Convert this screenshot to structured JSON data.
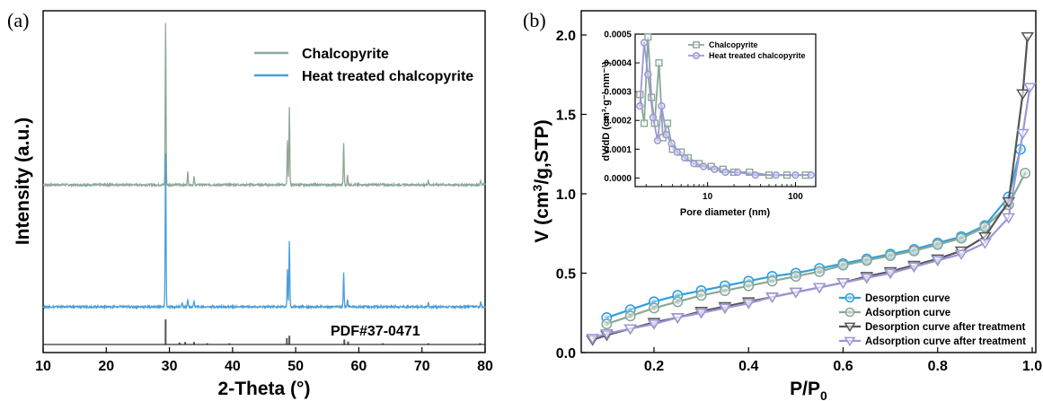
{
  "chart_data": [
    {
      "panel": "(a)",
      "type": "line",
      "xlabel": "2-Theta (°)",
      "ylabel": "Intensity (a.u.)",
      "xlim": [
        10,
        80
      ],
      "xticks": [
        10,
        20,
        30,
        40,
        50,
        60,
        70,
        80
      ],
      "yticks": [],
      "reference_label": "PDF#37-0471",
      "series": [
        {
          "name": "Chalcopyrite",
          "color": "#8fa898",
          "offset": 1.0,
          "peaks": [
            {
              "x": 29.4,
              "y": 1.0
            },
            {
              "x": 32.9,
              "y": 0.08
            },
            {
              "x": 33.9,
              "y": 0.05
            },
            {
              "x": 48.7,
              "y": 0.28
            },
            {
              "x": 49.0,
              "y": 0.48
            },
            {
              "x": 57.6,
              "y": 0.26
            },
            {
              "x": 58.2,
              "y": 0.06
            },
            {
              "x": 71.0,
              "y": 0.03
            },
            {
              "x": 79.3,
              "y": 0.03
            }
          ]
        },
        {
          "name": "Heat treated chalcopyrite",
          "color": "#4a9fd8",
          "offset": 0.0,
          "peaks": [
            {
              "x": 29.4,
              "y": 1.0
            },
            {
              "x": 32.0,
              "y": 0.03
            },
            {
              "x": 32.9,
              "y": 0.05
            },
            {
              "x": 33.9,
              "y": 0.04
            },
            {
              "x": 48.7,
              "y": 0.24
            },
            {
              "x": 49.0,
              "y": 0.43
            },
            {
              "x": 57.6,
              "y": 0.22
            },
            {
              "x": 58.2,
              "y": 0.05
            },
            {
              "x": 71.0,
              "y": 0.03
            },
            {
              "x": 79.3,
              "y": 0.03
            }
          ]
        }
      ],
      "reference_sticks": [
        {
          "x": 29.4,
          "y": 1.0
        },
        {
          "x": 31.6,
          "y": 0.08
        },
        {
          "x": 32.5,
          "y": 0.1
        },
        {
          "x": 33.9,
          "y": 0.1
        },
        {
          "x": 36.0,
          "y": 0.05
        },
        {
          "x": 39.5,
          "y": 0.05
        },
        {
          "x": 48.6,
          "y": 0.25
        },
        {
          "x": 49.0,
          "y": 0.35
        },
        {
          "x": 57.7,
          "y": 0.2
        },
        {
          "x": 58.3,
          "y": 0.12
        },
        {
          "x": 63.8,
          "y": 0.05
        },
        {
          "x": 71.0,
          "y": 0.05
        },
        {
          "x": 79.2,
          "y": 0.05
        }
      ]
    },
    {
      "panel": "(b)",
      "type": "line",
      "xlabel": "P/P0",
      "ylabel": "V (cm³/g,STP)",
      "xlim": [
        0.05,
        1.0
      ],
      "ylim": [
        0.0,
        2.0
      ],
      "xticks": [
        0.2,
        0.4,
        0.6,
        0.8,
        1.0
      ],
      "yticks": [
        0.0,
        0.5,
        1.0,
        1.5,
        2.0
      ],
      "series": [
        {
          "name": "Desorption curve",
          "color": "#2f9fe0",
          "marker": "circle",
          "x": [
            0.1,
            0.15,
            0.2,
            0.25,
            0.3,
            0.35,
            0.4,
            0.45,
            0.5,
            0.55,
            0.6,
            0.65,
            0.7,
            0.75,
            0.8,
            0.85,
            0.9,
            0.95,
            0.975
          ],
          "y": [
            0.22,
            0.27,
            0.32,
            0.36,
            0.39,
            0.42,
            0.45,
            0.48,
            0.5,
            0.53,
            0.56,
            0.59,
            0.62,
            0.65,
            0.69,
            0.73,
            0.8,
            0.98,
            1.28
          ]
        },
        {
          "name": "Adsorption curve",
          "color": "#8aa897",
          "marker": "circle",
          "x": [
            0.1,
            0.15,
            0.2,
            0.25,
            0.3,
            0.35,
            0.4,
            0.45,
            0.5,
            0.55,
            0.6,
            0.65,
            0.7,
            0.75,
            0.8,
            0.85,
            0.9,
            0.95,
            0.985
          ],
          "y": [
            0.18,
            0.23,
            0.28,
            0.32,
            0.36,
            0.39,
            0.42,
            0.45,
            0.48,
            0.51,
            0.55,
            0.58,
            0.61,
            0.64,
            0.68,
            0.72,
            0.79,
            0.93,
            1.13
          ]
        },
        {
          "name": "Desorption curve after treatment",
          "color": "#555555",
          "marker": "triangle",
          "x": [
            0.07,
            0.1,
            0.15,
            0.2,
            0.25,
            0.3,
            0.35,
            0.4,
            0.45,
            0.5,
            0.55,
            0.6,
            0.65,
            0.7,
            0.75,
            0.8,
            0.85,
            0.9,
            0.95,
            0.98,
            0.99
          ],
          "y": [
            0.08,
            0.11,
            0.15,
            0.19,
            0.22,
            0.26,
            0.29,
            0.32,
            0.35,
            0.38,
            0.41,
            0.44,
            0.48,
            0.51,
            0.55,
            0.59,
            0.64,
            0.73,
            0.95,
            1.63,
            1.99
          ]
        },
        {
          "name": "Adsorption curve after treatment",
          "color": "#9b97d6",
          "marker": "triangle",
          "x": [
            0.07,
            0.1,
            0.15,
            0.2,
            0.25,
            0.3,
            0.35,
            0.4,
            0.45,
            0.5,
            0.55,
            0.6,
            0.65,
            0.7,
            0.75,
            0.8,
            0.85,
            0.9,
            0.95,
            0.98,
            0.995
          ],
          "y": [
            0.09,
            0.12,
            0.15,
            0.18,
            0.22,
            0.25,
            0.28,
            0.31,
            0.35,
            0.38,
            0.41,
            0.44,
            0.47,
            0.5,
            0.54,
            0.58,
            0.62,
            0.69,
            0.85,
            1.38,
            1.67
          ]
        }
      ],
      "inset": {
        "xlabel": "Pore diameter (nm)",
        "ylabel": "dV/dD (cm³·g⁻¹·nm⁻¹)",
        "xscale": "log",
        "xlim": [
          1.5,
          170
        ],
        "ylim": [
          -3e-05,
          0.0005
        ],
        "xticks": [
          10,
          100
        ],
        "yticks": [
          0.0,
          0.0001,
          0.0002,
          0.0003,
          0.0004,
          0.0005
        ],
        "ytick_labels": [
          "0.0000",
          "0.0001",
          "0.0002",
          "0.0003",
          "0.0004",
          "0.0005"
        ],
        "series": [
          {
            "name": "Chalcopyrite",
            "color": "#8aa897",
            "marker": "square",
            "x": [
              1.7,
              1.9,
              2.1,
              2.3,
              2.5,
              2.8,
              3.1,
              3.5,
              4,
              5,
              6,
              8,
              11,
              15,
              20,
              30,
              50,
              80,
              130
            ],
            "y": [
              0.00029,
              0.00019,
              0.00049,
              0.00028,
              0.00019,
              0.0004,
              0.00014,
              0.00019,
              0.0001,
              9e-05,
              7e-05,
              5e-05,
              4e-05,
              3e-05,
              2e-05,
              2e-05,
              1e-05,
              1e-05,
              1e-05
            ]
          },
          {
            "name": "Heat treated chalcopyrite",
            "color": "#9b97d6",
            "marker": "circle",
            "x": [
              1.7,
              1.9,
              2.1,
              2.4,
              2.7,
              3.0,
              3.4,
              3.9,
              4.5,
              5.5,
              7,
              9,
              12,
              16,
              22,
              35,
              60,
              100,
              150
            ],
            "y": [
              0.00025,
              0.00047,
              0.00036,
              0.00021,
              0.00013,
              0.00025,
              0.00015,
              0.00012,
              9e-05,
              7e-05,
              5e-05,
              4e-05,
              3e-05,
              2e-05,
              2e-05,
              1e-05,
              1e-05,
              1e-05,
              1e-05
            ]
          }
        ]
      }
    }
  ]
}
